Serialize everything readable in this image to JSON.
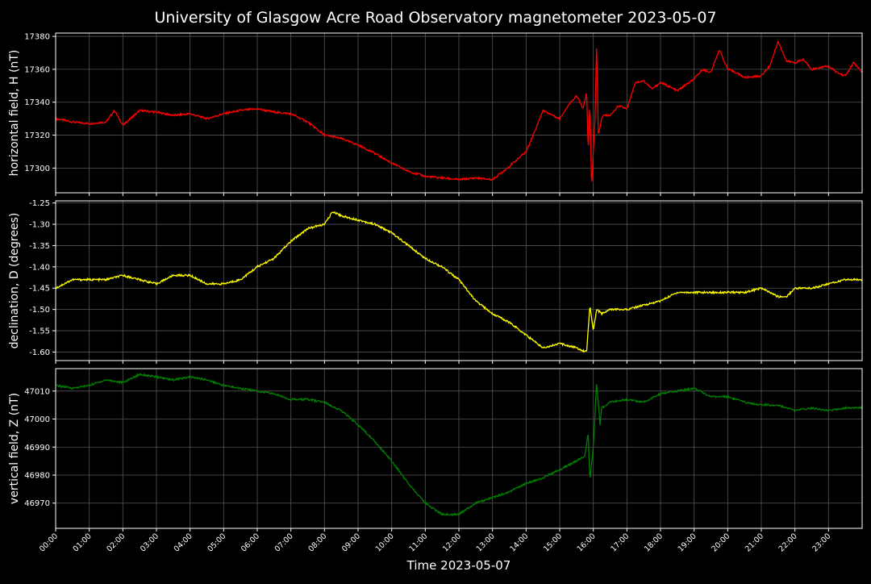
{
  "chart_data": {
    "title": "University of Glasgow Acre Road Observatory magnetometer 2023-05-07",
    "xlabel": "Time 2023-05-07",
    "x_ticks": [
      "00:00",
      "01:00",
      "02:00",
      "03:00",
      "04:00",
      "05:00",
      "06:00",
      "07:00",
      "08:00",
      "09:00",
      "10:00",
      "11:00",
      "12:00",
      "13:00",
      "14:00",
      "15:00",
      "16:00",
      "17:00",
      "18:00",
      "19:00",
      "20:00",
      "21:00",
      "22:00",
      "23:00"
    ],
    "xlim_hours": [
      0,
      24
    ],
    "grid": true,
    "panels": [
      {
        "type": "line",
        "ylabel": "horizontal field, H (nT)",
        "color": "#ff0000",
        "ylim": [
          17285,
          17382
        ],
        "yticks": [
          17300,
          17320,
          17340,
          17360,
          17380
        ],
        "series": [
          {
            "x": [
              0,
              0.5,
              1,
              1.5,
              1.75,
              2,
              2.5,
              3,
              3.5,
              4,
              4.5,
              5,
              5.5,
              6,
              6.5,
              7,
              7.5,
              8,
              8.5,
              9,
              9.5,
              10,
              10.5,
              11,
              11.5,
              12,
              12.5,
              13,
              13.5,
              14,
              14.25,
              14.5,
              15,
              15.25,
              15.5,
              15.7,
              15.8,
              15.85,
              15.9,
              15.95,
              16,
              16.05,
              16.1,
              16.15,
              16.2,
              16.25,
              16.3,
              16.5,
              16.75,
              17,
              17.25,
              17.5,
              17.75,
              18,
              18.5,
              19,
              19.25,
              19.5,
              19.75,
              20,
              20.25,
              20.5,
              21,
              21.25,
              21.5,
              21.75,
              22,
              22.25,
              22.5,
              23,
              23.25,
              23.5,
              23.75,
              24
            ],
            "y": [
              17330,
              17328,
              17327,
              17328,
              17335,
              17326,
              17335,
              17334,
              17332,
              17333,
              17330,
              17333,
              17335,
              17336,
              17334,
              17333,
              17328,
              17320,
              17318,
              17314,
              17309,
              17303,
              17298,
              17295,
              17294,
              17293,
              17294,
              17293,
              17301,
              17310,
              17322,
              17335,
              17330,
              17338,
              17344,
              17336,
              17346,
              17310,
              17340,
              17287,
              17310,
              17330,
              17375,
              17320,
              17325,
              17330,
              17332,
              17332,
              17338,
              17336,
              17352,
              17353,
              17348,
              17352,
              17347,
              17354,
              17360,
              17358,
              17372,
              17360,
              17358,
              17355,
              17356,
              17362,
              17377,
              17365,
              17364,
              17366,
              17360,
              17362,
              17358,
              17356,
              17364,
              17358
            ]
          }
        ]
      },
      {
        "type": "line",
        "ylabel": "declination, D (degrees)",
        "color": "#ffff00",
        "ylim": [
          -1.62,
          -1.245
        ],
        "yticks": [
          -1.6,
          -1.55,
          -1.5,
          -1.45,
          -1.4,
          -1.35,
          -1.3,
          -1.25
        ],
        "series": [
          {
            "x": [
              0,
              0.5,
              1,
              1.5,
              2,
              2.5,
              3,
              3.5,
              4,
              4.5,
              5,
              5.5,
              6,
              6.5,
              7,
              7.5,
              8,
              8.25,
              8.5,
              9,
              9.5,
              10,
              10.5,
              11,
              11.5,
              12,
              12.5,
              13,
              13.5,
              14,
              14.5,
              15,
              15.5,
              15.8,
              15.9,
              16,
              16.1,
              16.25,
              16.5,
              17,
              17.5,
              18,
              18.5,
              19,
              19.5,
              20,
              20.5,
              21,
              21.5,
              21.75,
              22,
              22.5,
              23,
              23.5,
              24
            ],
            "y": [
              -1.45,
              -1.43,
              -1.43,
              -1.43,
              -1.42,
              -1.43,
              -1.44,
              -1.42,
              -1.42,
              -1.44,
              -1.44,
              -1.43,
              -1.4,
              -1.38,
              -1.34,
              -1.31,
              -1.3,
              -1.27,
              -1.28,
              -1.29,
              -1.3,
              -1.32,
              -1.35,
              -1.38,
              -1.4,
              -1.43,
              -1.48,
              -1.51,
              -1.53,
              -1.56,
              -1.59,
              -1.58,
              -1.59,
              -1.6,
              -1.49,
              -1.55,
              -1.5,
              -1.51,
              -1.5,
              -1.5,
              -1.49,
              -1.48,
              -1.46,
              -1.46,
              -1.46,
              -1.46,
              -1.46,
              -1.45,
              -1.47,
              -1.47,
              -1.45,
              -1.45,
              -1.44,
              -1.43,
              -1.43
            ]
          }
        ]
      },
      {
        "type": "line",
        "ylabel": "vertical field, Z (nT)",
        "color": "#008000",
        "ylim": [
          46961,
          47018
        ],
        "yticks": [
          46970,
          46980,
          46990,
          47000,
          47010
        ],
        "series": [
          {
            "x": [
              0,
              0.5,
              1,
              1.5,
              2,
              2.5,
              3,
              3.5,
              4,
              4.5,
              5,
              5.5,
              6,
              6.5,
              7,
              7.5,
              8,
              8.5,
              9,
              9.5,
              10,
              10.5,
              11,
              11.5,
              12,
              12.5,
              13,
              13.5,
              14,
              14.5,
              15,
              15.5,
              15.75,
              15.85,
              15.9,
              16,
              16.1,
              16.2,
              16.25,
              16.5,
              17,
              17.5,
              18,
              18.5,
              19,
              19.5,
              20,
              20.5,
              21,
              21.5,
              22,
              22.5,
              23,
              23.5,
              24
            ],
            "y": [
              47012,
              47011,
              47012,
              47014,
              47013,
              47016,
              47015,
              47014,
              47015,
              47014,
              47012,
              47011,
              47010,
              47009,
              47007,
              47007,
              47006,
              47003,
              46998,
              46992,
              46985,
              46977,
              46970,
              46966,
              46966,
              46970,
              46972,
              46974,
              46977,
              46979,
              46982,
              46985,
              46987,
              46995,
              46978,
              46990,
              47013,
              46998,
              47004,
              47006,
              47007,
              47006,
              47009,
              47010,
              47011,
              47008,
              47008,
              47006,
              47005,
              47005,
              47003,
              47004,
              47003,
              47004,
              47004
            ]
          }
        ]
      }
    ]
  }
}
